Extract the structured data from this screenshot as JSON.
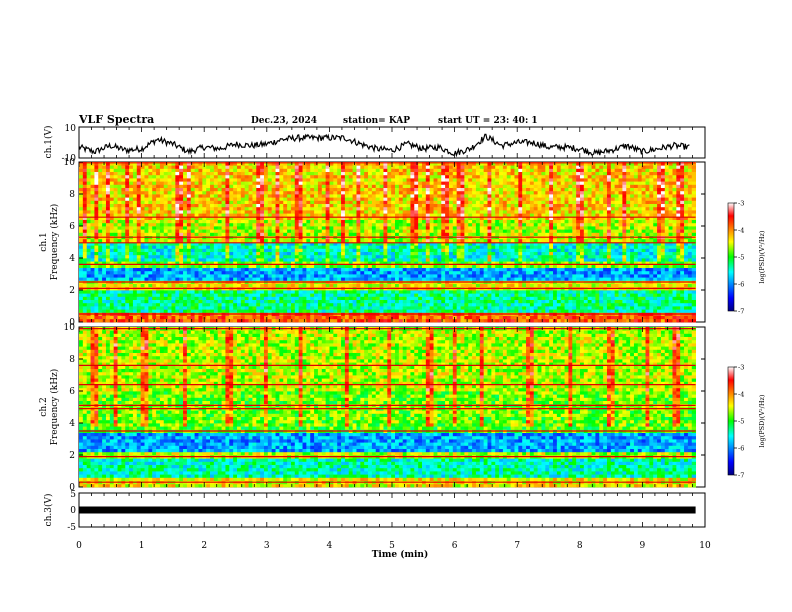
{
  "header": {
    "title": "VLF Spectra",
    "date": "Dec.23, 2024",
    "station": "station= KAP",
    "start_ut": "start  UT  =   23: 40: 1"
  },
  "colorbar_labels": {
    "unit_label": "log(PSD)(V²/Hz)",
    "ticks": [
      "-3",
      "-4",
      "-5",
      "-6",
      "-7"
    ]
  },
  "chart_data": [
    {
      "id": "ch1-voltage",
      "type": "line",
      "ylabel": "ch.1(V)",
      "ylim": [
        -10,
        10
      ],
      "yticks": [
        "10",
        "-10"
      ],
      "x": [
        0,
        0.25,
        0.5,
        0.75,
        1.0,
        1.25,
        1.5,
        1.75,
        2.0,
        2.25,
        2.5,
        2.75,
        3.0,
        3.25,
        3.5,
        3.75,
        4.0,
        4.25,
        4.5,
        4.75,
        5.0,
        5.25,
        5.5,
        5.75,
        6.0,
        6.25,
        6.5,
        6.75,
        7.0,
        7.25,
        7.5,
        7.75,
        8.0,
        8.25,
        8.5,
        8.75,
        9.0,
        9.25,
        9.5,
        9.75
      ],
      "values": [
        -3,
        -6,
        -2,
        -5,
        -4,
        2,
        -1,
        -6,
        -3,
        -4,
        -1,
        -2,
        -1,
        2,
        3,
        3,
        3,
        3,
        -1,
        -4,
        -5,
        -1,
        -4,
        -3,
        -7,
        -4,
        4,
        -2,
        0,
        0,
        -3,
        -3,
        -4,
        -7,
        -5,
        -2,
        -6,
        -4,
        -2,
        -3
      ]
    },
    {
      "id": "ch1-spectrogram",
      "type": "heatmap",
      "ylabel": "ch.1\nFrequency (kHz)",
      "ylim": [
        0,
        10
      ],
      "yticks": [
        "0",
        "2",
        "4",
        "6",
        "8",
        "10"
      ],
      "xlim": [
        0,
        9.85
      ],
      "clim": [
        -7,
        -3
      ],
      "colorbar": "log(PSD)(V²/Hz)",
      "colorbar_ticks": [
        "-3",
        "-4",
        "-5",
        "-6",
        "-7"
      ],
      "bands": [
        {
          "from": 0.0,
          "to": 0.7,
          "level": -3.8
        },
        {
          "from": 0.7,
          "to": 2.0,
          "level": -5.3
        },
        {
          "from": 2.0,
          "to": 2.6,
          "level": -4.4
        },
        {
          "from": 2.6,
          "to": 3.5,
          "level": -5.9
        },
        {
          "from": 3.5,
          "to": 3.9,
          "level": -4.8
        },
        {
          "from": 3.9,
          "to": 5.0,
          "level": -5.5
        },
        {
          "from": 5.0,
          "to": 6.5,
          "level": -4.6
        },
        {
          "from": 6.5,
          "to": 10.0,
          "level": -4.3
        }
      ],
      "lines_khz": [
        0.5,
        2.1,
        2.5,
        3.6,
        4.95,
        5.3,
        6.55,
        9.95
      ],
      "bursts_min": [
        0.1,
        0.28,
        0.45,
        0.78,
        0.95,
        1.6,
        1.75,
        2.35,
        2.9,
        3.15,
        3.5,
        3.98,
        4.2,
        4.45,
        4.9,
        5.35,
        5.55,
        5.85,
        6.1,
        6.55,
        7.05,
        7.55,
        8.0,
        8.45,
        8.7,
        9.3,
        9.6
      ]
    },
    {
      "id": "ch2-spectrogram",
      "type": "heatmap",
      "ylabel": "ch.2\nFrequency (kHz)",
      "ylim": [
        0,
        10
      ],
      "yticks": [
        "0",
        "2",
        "4",
        "6",
        "8",
        "10"
      ],
      "xlim": [
        0,
        9.85
      ],
      "clim": [
        -7,
        -3
      ],
      "colorbar": "log(PSD)(V²/Hz)",
      "colorbar_ticks": [
        "-3",
        "-4",
        "-5",
        "-6",
        "-7"
      ],
      "bands": [
        {
          "from": 0.0,
          "to": 0.6,
          "level": -4.4
        },
        {
          "from": 0.6,
          "to": 1.8,
          "level": -5.4
        },
        {
          "from": 1.8,
          "to": 2.2,
          "level": -4.6
        },
        {
          "from": 2.2,
          "to": 3.4,
          "level": -5.9
        },
        {
          "from": 3.4,
          "to": 3.9,
          "level": -4.9
        },
        {
          "from": 3.9,
          "to": 6.0,
          "level": -4.8
        },
        {
          "from": 6.0,
          "to": 10.0,
          "level": -4.6
        }
      ],
      "lines_khz": [
        0.3,
        1.9,
        3.5,
        4.9,
        5.1,
        6.4,
        7.6,
        9.9
      ],
      "bursts_min": [
        0.25,
        0.6,
        1.05,
        1.68,
        2.4,
        3.0,
        3.55,
        4.3,
        4.95,
        5.6,
        6.0,
        6.45,
        7.2,
        7.85,
        8.5,
        9.1,
        9.55
      ]
    },
    {
      "id": "ch3-voltage",
      "type": "line",
      "ylabel": "ch.3(V)",
      "ylim": [
        -5,
        5
      ],
      "yticks": [
        "5",
        "0",
        "-5"
      ],
      "x": [
        0,
        9.85
      ],
      "values": [
        0,
        0
      ]
    }
  ],
  "time_axis": {
    "xlabel": "Time (min)",
    "xlim": [
      0,
      10
    ],
    "ticks": [
      "0",
      "1",
      "2",
      "3",
      "4",
      "5",
      "6",
      "7",
      "8",
      "9",
      "10"
    ]
  }
}
